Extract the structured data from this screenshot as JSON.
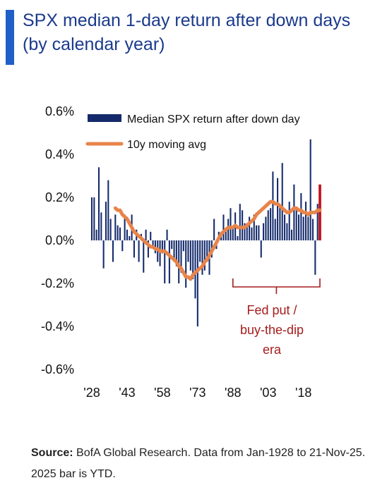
{
  "title": "SPX median 1-day return after down days (by calendar year)",
  "source": {
    "label": "Source:",
    "text": "BofA Global Research. Data from Jan-1928 to 21-Nov-25. 2025 bar is YTD."
  },
  "chart_data": {
    "type": "bar",
    "title": "SPX median 1-day return after down days (by calendar year)",
    "xlabel": "",
    "ylabel": "",
    "ylim": [
      -0.6,
      0.6
    ],
    "y_ticks": [
      "0.6%",
      "0.4%",
      "0.2%",
      "0.0%",
      "-0.2%",
      "-0.4%",
      "-0.6%"
    ],
    "y_tick_values": [
      0.6,
      0.4,
      0.2,
      0.0,
      -0.2,
      -0.4,
      -0.6
    ],
    "x_ticks": [
      "'28",
      "'43",
      "'58",
      "'73",
      "'88",
      "'03",
      "'18"
    ],
    "x_tick_years": [
      1928,
      1943,
      1958,
      1973,
      1988,
      2003,
      2018
    ],
    "grid": false,
    "legend_position": "top",
    "series": [
      {
        "name": "Median SPX return after down day",
        "kind": "bar",
        "color": "#142a6b",
        "highlight_color": "#c0131c",
        "highlight_index": 97,
        "x": [
          1928,
          1929,
          1930,
          1931,
          1932,
          1933,
          1934,
          1935,
          1936,
          1937,
          1938,
          1939,
          1940,
          1941,
          1942,
          1943,
          1944,
          1945,
          1946,
          1947,
          1948,
          1949,
          1950,
          1951,
          1952,
          1953,
          1954,
          1955,
          1956,
          1957,
          1958,
          1959,
          1960,
          1961,
          1962,
          1963,
          1964,
          1965,
          1966,
          1967,
          1968,
          1969,
          1970,
          1971,
          1972,
          1973,
          1974,
          1975,
          1976,
          1977,
          1978,
          1979,
          1980,
          1981,
          1982,
          1983,
          1984,
          1985,
          1986,
          1987,
          1988,
          1989,
          1990,
          1991,
          1992,
          1993,
          1994,
          1995,
          1996,
          1997,
          1998,
          1999,
          2000,
          2001,
          2002,
          2003,
          2004,
          2005,
          2006,
          2007,
          2008,
          2009,
          2010,
          2011,
          2012,
          2013,
          2014,
          2015,
          2016,
          2017,
          2018,
          2019,
          2020,
          2021,
          2022,
          2023,
          2024,
          2025
        ],
        "values": [
          0.2,
          0.2,
          0.05,
          0.34,
          0.13,
          -0.13,
          0.18,
          0.28,
          0.1,
          -0.1,
          0.12,
          0.07,
          0.06,
          -0.05,
          0.12,
          0.05,
          0.02,
          0.12,
          -0.08,
          0.05,
          -0.1,
          0.03,
          -0.15,
          0.05,
          -0.08,
          0.04,
          -0.03,
          -0.06,
          -0.1,
          -0.12,
          -0.06,
          -0.2,
          0.05,
          -0.2,
          -0.04,
          -0.1,
          -0.12,
          -0.2,
          -0.15,
          -0.05,
          -0.22,
          -0.1,
          -0.14,
          -0.18,
          -0.27,
          -0.4,
          -0.1,
          -0.16,
          -0.14,
          -0.1,
          -0.16,
          -0.08,
          0.1,
          -0.04,
          0.04,
          0.04,
          0.12,
          0.05,
          0.1,
          0.15,
          0.06,
          0.13,
          0.02,
          0.17,
          0.14,
          0.08,
          0.08,
          0.11,
          0.06,
          0.12,
          0.07,
          0.07,
          -0.08,
          0.08,
          0.11,
          0.14,
          0.15,
          0.32,
          0.1,
          0.29,
          0.16,
          0.36,
          0.12,
          0.08,
          0.18,
          0.05,
          0.26,
          0.15,
          0.12,
          0.22,
          0.11,
          0.18,
          0.11,
          0.47,
          0.1,
          -0.16,
          0.17,
          0.26
        ]
      },
      {
        "name": "10y moving avg",
        "kind": "line",
        "color": "#e8844a",
        "x": [
          1938,
          1939,
          1940,
          1941,
          1942,
          1943,
          1944,
          1945,
          1946,
          1947,
          1948,
          1949,
          1950,
          1951,
          1952,
          1953,
          1954,
          1955,
          1956,
          1957,
          1958,
          1959,
          1960,
          1961,
          1962,
          1963,
          1964,
          1965,
          1966,
          1967,
          1968,
          1969,
          1970,
          1971,
          1972,
          1973,
          1974,
          1975,
          1976,
          1977,
          1978,
          1979,
          1980,
          1981,
          1982,
          1983,
          1984,
          1985,
          1986,
          1987,
          1988,
          1989,
          1990,
          1991,
          1992,
          1993,
          1994,
          1995,
          1996,
          1997,
          1998,
          1999,
          2000,
          2001,
          2002,
          2003,
          2004,
          2005,
          2006,
          2007,
          2008,
          2009,
          2010,
          2011,
          2012,
          2013,
          2014,
          2015,
          2016,
          2017,
          2018,
          2019,
          2020,
          2021,
          2022,
          2023,
          2024,
          2025
        ],
        "values": [
          0.15,
          0.14,
          0.14,
          0.12,
          0.11,
          0.1,
          0.08,
          0.06,
          0.04,
          0.03,
          0.02,
          0.01,
          0.0,
          -0.01,
          -0.02,
          -0.03,
          -0.03,
          -0.04,
          -0.04,
          -0.05,
          -0.05,
          -0.05,
          -0.06,
          -0.07,
          -0.08,
          -0.09,
          -0.1,
          -0.12,
          -0.13,
          -0.15,
          -0.17,
          -0.17,
          -0.18,
          -0.16,
          -0.15,
          -0.14,
          -0.13,
          -0.12,
          -0.1,
          -0.09,
          -0.07,
          -0.05,
          -0.03,
          -0.01,
          0.01,
          0.03,
          0.04,
          0.05,
          0.06,
          0.06,
          0.06,
          0.07,
          0.06,
          0.06,
          0.06,
          0.06,
          0.07,
          0.08,
          0.09,
          0.1,
          0.12,
          0.13,
          0.14,
          0.15,
          0.16,
          0.17,
          0.18,
          0.18,
          0.17,
          0.17,
          0.16,
          0.15,
          0.14,
          0.13,
          0.13,
          0.14,
          0.15,
          0.15,
          0.14,
          0.14,
          0.13,
          0.13,
          0.12,
          0.13,
          0.13,
          0.13,
          0.14,
          0.14
        ]
      }
    ],
    "annotation": {
      "lines": [
        "Fed put /",
        "buy-the-dip",
        "era"
      ],
      "color": "#a61c1c",
      "x_start": 1988,
      "x_end": 2025
    }
  }
}
